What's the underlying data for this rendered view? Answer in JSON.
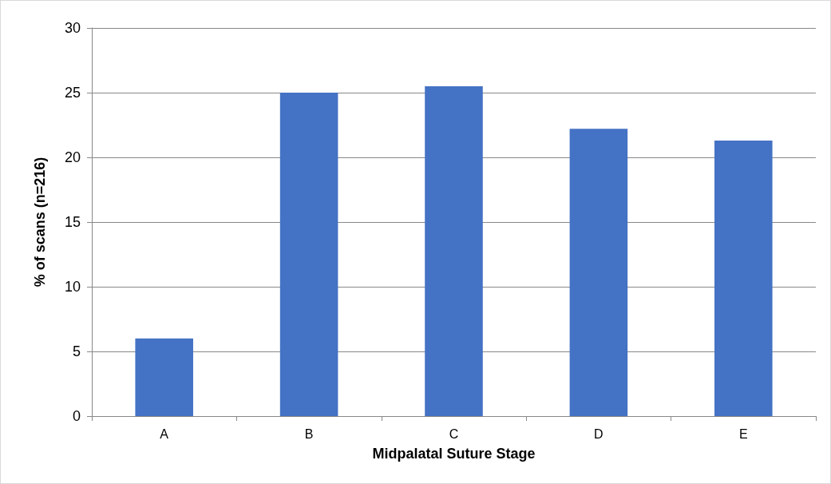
{
  "chart_data": {
    "type": "bar",
    "xlabel": "Midpalatal Suture Stage",
    "ylabel": "% of scans (n=216)",
    "categories": [
      "A",
      "B",
      "C",
      "D",
      "E"
    ],
    "values": [
      6.0,
      25.0,
      25.5,
      22.2,
      21.3
    ],
    "color": "#4472c4",
    "ylim": [
      0,
      30
    ],
    "yticks": [
      0,
      5,
      10,
      15,
      20,
      25,
      30
    ],
    "grid": "y"
  }
}
